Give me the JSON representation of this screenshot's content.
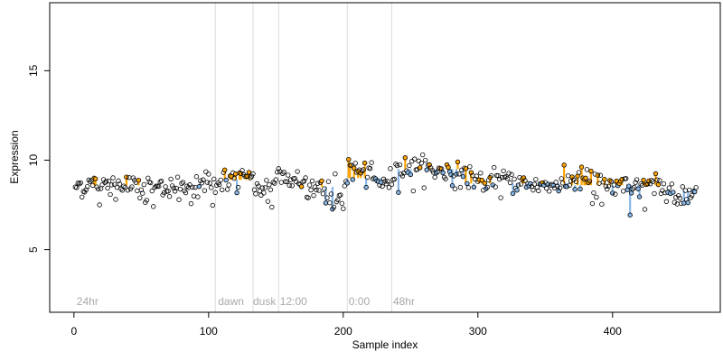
{
  "chart_data": {
    "type": "scatter",
    "xlabel": "Sample index",
    "ylabel": "Expression",
    "xlim": [
      -18,
      480
    ],
    "ylim": [
      1.5,
      18.8
    ],
    "x_ticks": [
      0,
      100,
      200,
      300,
      400
    ],
    "y_ticks": [
      5,
      10,
      15
    ],
    "grid": false,
    "period_lines": [
      105,
      133,
      152,
      203,
      236
    ],
    "period_labels": [
      {
        "x": 2,
        "label": "24hr"
      },
      {
        "x": 107,
        "label": "dawn"
      },
      {
        "x": 133,
        "label": "dusk"
      },
      {
        "x": 153,
        "label": "12:00"
      },
      {
        "x": 204,
        "label": "0:00"
      },
      {
        "x": 237,
        "label": "48hr"
      }
    ],
    "n_points": 462,
    "point_fill_high": "#ffa500",
    "point_fill_low": "#87b7e8",
    "bar_color_high": "#ffa500",
    "bar_color_low": "#87b7e8",
    "segments": [
      {
        "from": 0,
        "to": 105,
        "baseline": 8.6,
        "ratio": 0.05
      },
      {
        "from": 105,
        "to": 133,
        "baseline": 8.9,
        "ratio": 0.38
      },
      {
        "from": 133,
        "to": 152,
        "baseline": 8.5,
        "ratio": 0.05
      },
      {
        "from": 152,
        "to": 203,
        "baseline": 8.5,
        "ratio": 0.04
      },
      {
        "from": 203,
        "to": 236,
        "baseline": 9.0,
        "ratio": 0.38
      },
      {
        "from": 236,
        "to": 290,
        "baseline": 9.5,
        "ratio": 0.33
      },
      {
        "from": 290,
        "to": 370,
        "baseline": 8.7,
        "ratio": 0.3
      },
      {
        "from": 370,
        "to": 440,
        "baseline": 8.6,
        "ratio": 0.45
      },
      {
        "from": 440,
        "to": 462,
        "baseline": 8.3,
        "ratio": 0.4
      }
    ],
    "trend": [
      [
        0,
        8.6
      ],
      [
        30,
        8.6
      ],
      [
        60,
        8.5
      ],
      [
        90,
        8.6
      ],
      [
        105,
        8.8
      ],
      [
        133,
        9.0
      ],
      [
        134,
        8.2
      ],
      [
        148,
        8.7
      ],
      [
        152,
        9.2
      ],
      [
        170,
        8.8
      ],
      [
        186,
        8.3
      ],
      [
        200,
        7.8
      ],
      [
        202,
        8.5
      ],
      [
        204,
        9.7
      ],
      [
        220,
        9.0
      ],
      [
        234,
        8.7
      ],
      [
        238,
        9.4
      ],
      [
        255,
        9.6
      ],
      [
        280,
        9.3
      ],
      [
        300,
        8.9
      ],
      [
        330,
        8.7
      ],
      [
        360,
        8.6
      ],
      [
        380,
        9.0
      ],
      [
        400,
        8.6
      ],
      [
        420,
        8.4
      ],
      [
        440,
        8.5
      ],
      [
        450,
        7.9
      ],
      [
        462,
        8.1
      ]
    ],
    "noise_sd": 0.32
  }
}
